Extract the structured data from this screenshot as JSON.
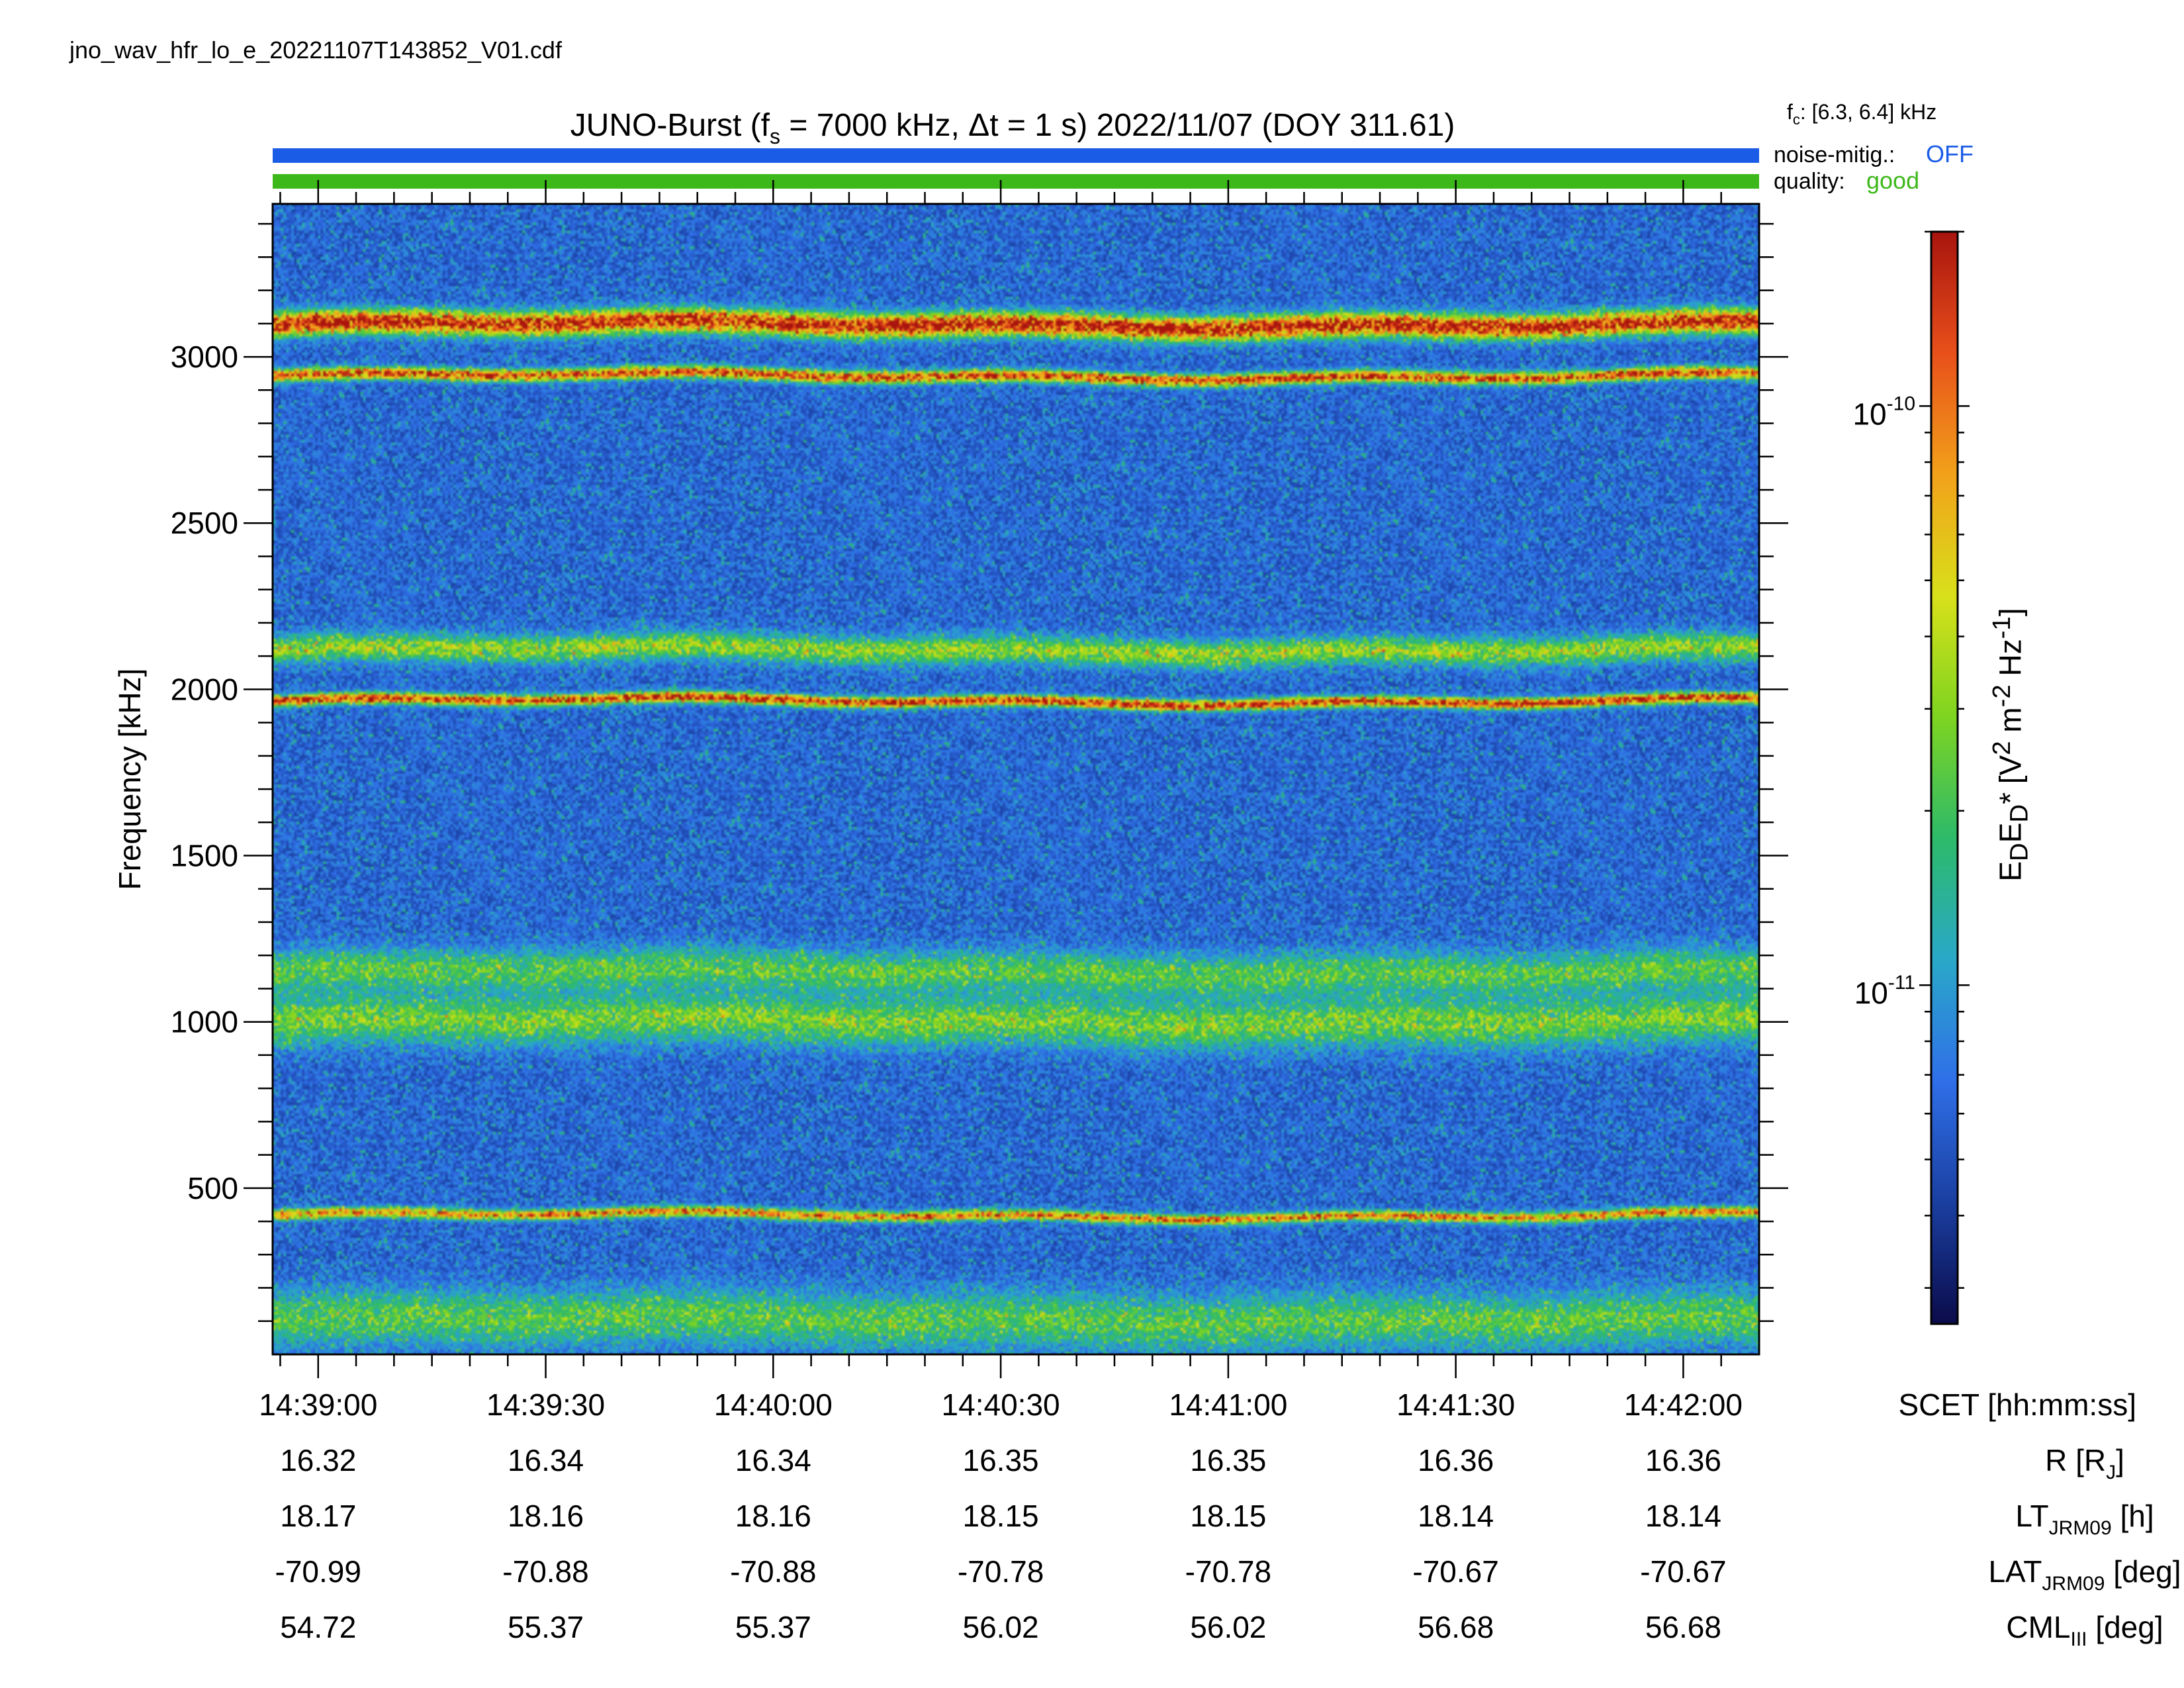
{
  "page": {
    "filename": "jno_wav_hfr_lo_e_20221107T143852_V01.cdf"
  },
  "header": {
    "title_main": "JUNO-Burst (f",
    "title_sub_s": "s",
    "title_rest": " = 7000 kHz, Δt = 1 s)  2022/11/07 (DOY 311.61)",
    "fc_label_f": "f",
    "fc_label_sub": "c",
    "fc_value": ": [6.3, 6.4] kHz",
    "noise_label": "noise-mitig.:",
    "noise_value": "OFF",
    "quality_label": "quality:",
    "quality_value": "good",
    "noise_color": "#1a5ce6",
    "quality_color": "#3cb81a"
  },
  "ephemeris": {
    "scet_label": "SCET [hh:mm:ss]",
    "rows": [
      {
        "label_main": "R [R",
        "label_sub": "J",
        "label_end": "]",
        "values": [
          "16.32",
          "16.34",
          "16.34",
          "16.35",
          "16.35",
          "16.36",
          "16.36"
        ]
      },
      {
        "label_main": "LT",
        "label_sub": "JRM09",
        "label_end": " [h]",
        "values": [
          "18.17",
          "18.16",
          "18.16",
          "18.15",
          "18.15",
          "18.14",
          "18.14"
        ]
      },
      {
        "label_main": "LAT",
        "label_sub": "JRM09",
        "label_end": " [deg]",
        "values": [
          "-70.99",
          "-70.88",
          "-70.88",
          "-70.78",
          "-70.78",
          "-70.67",
          "-70.67"
        ]
      },
      {
        "label_main": "CML",
        "label_sub": "III",
        "label_end": " [deg]",
        "values": [
          "54.72",
          "55.37",
          "55.37",
          "56.02",
          "56.02",
          "56.68",
          "56.68"
        ]
      }
    ]
  },
  "colorbar": {
    "label_html": "E<sub>D</sub>E<sub>D</sub>* [V<sup>2</sup> m<sup>-2</sup> Hz<sup>-1</sup>]",
    "ticks": [
      {
        "base": "10",
        "exp": "-10",
        "value": 1e-10
      },
      {
        "base": "10",
        "exp": "-11",
        "value": 1e-11
      }
    ],
    "range": [
      2.6e-12,
      2e-10
    ],
    "colormap": [
      "#0b0b4a",
      "#1a3fa0",
      "#2f6fe8",
      "#2aa8c8",
      "#2dba6a",
      "#7ed420",
      "#d8e01a",
      "#f2a11a",
      "#e8501a",
      "#a8140e"
    ]
  },
  "chart_data": {
    "type": "heatmap",
    "title": "JUNO-Burst (fs = 7000 kHz, Δt = 1 s)  2022/11/07 (DOY 311.61)",
    "xlabel": "SCET [hh:mm:ss]",
    "ylabel": "Frequency [kHz]",
    "x_ticks": [
      "14:39:00",
      "14:39:30",
      "14:40:00",
      "14:40:30",
      "14:41:00",
      "14:41:30",
      "14:42:00"
    ],
    "x_range_seconds_from_tick0": [
      -6,
      190
    ],
    "y_ticks": [
      500,
      1000,
      1500,
      2000,
      2500,
      3000
    ],
    "y_range": [
      0,
      3460
    ],
    "colorbar_scale": "log",
    "emission_bands_khz": [
      {
        "center": 3100,
        "width": 35,
        "intensity": 0.95
      },
      {
        "center": 2945,
        "width": 18,
        "intensity": 0.85
      },
      {
        "center": 2120,
        "width": 40,
        "intensity": 0.45
      },
      {
        "center": 1965,
        "width": 16,
        "intensity": 0.9
      },
      {
        "center": 1150,
        "width": 60,
        "intensity": 0.35
      },
      {
        "center": 1000,
        "width": 70,
        "intensity": 0.4
      },
      {
        "center": 415,
        "width": 15,
        "intensity": 0.75
      },
      {
        "center": 100,
        "width": 80,
        "intensity": 0.35
      }
    ]
  }
}
